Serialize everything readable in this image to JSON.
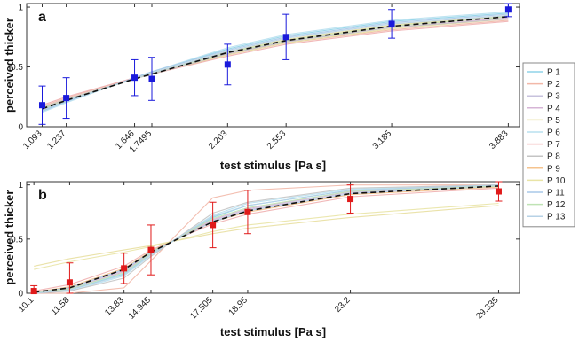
{
  "chart_data": [
    {
      "type": "line",
      "panel_label": "a",
      "xlabel": "test stimulus [Pa s]",
      "ylabel": "perceived thicker",
      "xlim": [
        1.0,
        3.95
      ],
      "ylim": [
        0,
        1.03
      ],
      "xtick_values": [
        1.093,
        1.237,
        1.646,
        1.7495,
        2.203,
        2.553,
        3.185,
        3.883
      ],
      "xtick_labels": [
        "1.093",
        "1.237",
        "1.646",
        "1.7495",
        "2.203",
        "2.553",
        "3.185",
        "3.883"
      ],
      "ytick_values": [
        0,
        0.5,
        1
      ],
      "ytick_labels": [
        "0",
        "0.5",
        "1"
      ],
      "grid": false,
      "points": {
        "x": [
          1.093,
          1.237,
          1.646,
          1.7495,
          2.203,
          2.553,
          3.185,
          3.883
        ],
        "y": [
          0.18,
          0.24,
          0.41,
          0.4,
          0.52,
          0.75,
          0.86,
          0.98
        ],
        "err": [
          0.16,
          0.17,
          0.15,
          0.18,
          0.17,
          0.19,
          0.12,
          0.06
        ],
        "color": "#1a1adb"
      },
      "mean_fit": {
        "x": [
          1.093,
          1.237,
          1.646,
          1.7495,
          2.203,
          2.553,
          3.185,
          3.883
        ],
        "y": [
          0.15,
          0.22,
          0.4,
          0.44,
          0.62,
          0.72,
          0.84,
          0.92
        ],
        "color": "#111111"
      },
      "participant_fits": [
        {
          "name": "P 1",
          "color": "#8fd3e8",
          "y": [
            0.13,
            0.21,
            0.41,
            0.46,
            0.65,
            0.76,
            0.88,
            0.95
          ]
        },
        {
          "name": "P 2",
          "color": "#f2b8a8",
          "y": [
            0.17,
            0.24,
            0.41,
            0.44,
            0.6,
            0.7,
            0.81,
            0.89
          ]
        },
        {
          "name": "P 3",
          "color": "#c7c2dd",
          "y": [
            0.14,
            0.22,
            0.4,
            0.45,
            0.63,
            0.73,
            0.85,
            0.93
          ]
        },
        {
          "name": "P 4",
          "color": "#d6b4d6",
          "y": [
            0.15,
            0.23,
            0.4,
            0.44,
            0.61,
            0.71,
            0.83,
            0.91
          ]
        },
        {
          "name": "P 5",
          "color": "#e8dfa0",
          "y": [
            0.16,
            0.23,
            0.4,
            0.44,
            0.6,
            0.7,
            0.82,
            0.9
          ]
        },
        {
          "name": "P 6",
          "color": "#b8e0ef",
          "y": [
            0.12,
            0.2,
            0.41,
            0.46,
            0.66,
            0.77,
            0.89,
            0.96
          ]
        },
        {
          "name": "P 7",
          "color": "#f0b0b0",
          "y": [
            0.18,
            0.25,
            0.41,
            0.44,
            0.59,
            0.69,
            0.8,
            0.88
          ]
        },
        {
          "name": "P 8",
          "color": "#c4c4c4",
          "y": [
            0.16,
            0.23,
            0.4,
            0.44,
            0.61,
            0.71,
            0.83,
            0.9
          ]
        },
        {
          "name": "P 9",
          "color": "#f5c38e",
          "y": [
            0.15,
            0.22,
            0.4,
            0.45,
            0.62,
            0.72,
            0.84,
            0.92
          ]
        },
        {
          "name": "P 10",
          "color": "#e9e4a6",
          "y": [
            0.14,
            0.22,
            0.4,
            0.45,
            0.63,
            0.73,
            0.85,
            0.93
          ]
        },
        {
          "name": "P 11",
          "color": "#a9c8e8",
          "y": [
            0.13,
            0.21,
            0.41,
            0.46,
            0.64,
            0.75,
            0.87,
            0.94
          ]
        },
        {
          "name": "P 12",
          "color": "#bfe3b4",
          "y": [
            0.15,
            0.22,
            0.4,
            0.45,
            0.62,
            0.72,
            0.84,
            0.92
          ]
        },
        {
          "name": "P 13",
          "color": "#b7d2e6",
          "y": [
            0.14,
            0.22,
            0.4,
            0.45,
            0.63,
            0.74,
            0.86,
            0.93
          ]
        }
      ]
    },
    {
      "type": "line",
      "panel_label": "b",
      "xlabel": "test stimulus [Pa s]",
      "ylabel": "perceived thicker",
      "xlim": [
        9.8,
        30.2
      ],
      "ylim": [
        0,
        1.03
      ],
      "xtick_values": [
        10.1,
        11.58,
        13.83,
        14.945,
        17.505,
        18.95,
        23.2,
        29.335
      ],
      "xtick_labels": [
        "10.1",
        "11.58",
        "13.83",
        "14.945",
        "17.505",
        "18.95",
        "23.2",
        "29.335"
      ],
      "ytick_values": [
        0,
        0.5,
        1
      ],
      "ytick_labels": [
        "0",
        "0.5",
        "1"
      ],
      "grid": false,
      "points": {
        "x": [
          10.1,
          11.58,
          13.83,
          14.945,
          17.505,
          18.95,
          23.2,
          29.335
        ],
        "y": [
          0.02,
          0.1,
          0.23,
          0.4,
          0.63,
          0.75,
          0.87,
          0.94
        ],
        "err": [
          0.05,
          0.18,
          0.14,
          0.23,
          0.21,
          0.2,
          0.13,
          0.09
        ],
        "color": "#e01a1a"
      },
      "mean_fit": {
        "x": [
          10.1,
          11.58,
          13.83,
          14.945,
          17.505,
          18.95,
          23.2,
          29.335
        ],
        "y": [
          0.01,
          0.05,
          0.22,
          0.38,
          0.66,
          0.76,
          0.92,
          0.99
        ],
        "color": "#111111"
      },
      "participant_fits": [
        {
          "name": "P 1",
          "color": "#8fd3e8",
          "y": [
            0.0,
            0.03,
            0.18,
            0.36,
            0.7,
            0.81,
            0.95,
            1.0
          ]
        },
        {
          "name": "P 2",
          "color": "#f2b8a8",
          "y": [
            0.0,
            0.0,
            0.05,
            0.3,
            0.88,
            0.95,
            1.0,
            1.0
          ]
        },
        {
          "name": "P 3",
          "color": "#c7c2dd",
          "y": [
            0.01,
            0.05,
            0.21,
            0.38,
            0.67,
            0.77,
            0.93,
            0.99
          ]
        },
        {
          "name": "P 4",
          "color": "#d6b4d6",
          "y": [
            0.01,
            0.04,
            0.2,
            0.37,
            0.68,
            0.78,
            0.94,
            0.99
          ]
        },
        {
          "name": "P 5",
          "color": "#e8dfa0",
          "y": [
            0.25,
            0.32,
            0.4,
            0.44,
            0.55,
            0.6,
            0.7,
            0.81
          ]
        },
        {
          "name": "P 6",
          "color": "#b8e0ef",
          "y": [
            0.0,
            0.02,
            0.16,
            0.35,
            0.72,
            0.83,
            0.96,
            1.0
          ]
        },
        {
          "name": "P 7",
          "color": "#f0b0b0",
          "y": [
            0.02,
            0.08,
            0.25,
            0.4,
            0.64,
            0.73,
            0.89,
            0.97
          ]
        },
        {
          "name": "P 8",
          "color": "#c4c4c4",
          "y": [
            0.0,
            0.02,
            0.14,
            0.34,
            0.74,
            0.84,
            0.97,
            1.0
          ]
        },
        {
          "name": "P 9",
          "color": "#f5c38e",
          "y": [
            0.01,
            0.06,
            0.23,
            0.39,
            0.66,
            0.75,
            0.91,
            0.98
          ]
        },
        {
          "name": "P 10",
          "color": "#e9e4a6",
          "y": [
            0.22,
            0.29,
            0.38,
            0.43,
            0.57,
            0.63,
            0.73,
            0.83
          ]
        },
        {
          "name": "P 11",
          "color": "#a9c8e8",
          "y": [
            0.01,
            0.05,
            0.22,
            0.38,
            0.66,
            0.76,
            0.92,
            0.99
          ]
        },
        {
          "name": "P 12",
          "color": "#bfe3b4",
          "y": [
            0.01,
            0.04,
            0.19,
            0.37,
            0.69,
            0.79,
            0.94,
            0.99
          ]
        },
        {
          "name": "P 13",
          "color": "#b7d2e6",
          "y": [
            0.0,
            0.03,
            0.17,
            0.36,
            0.71,
            0.81,
            0.95,
            1.0
          ]
        }
      ]
    }
  ],
  "legend": {
    "placement": "right",
    "entries": [
      "P 1",
      "P 2",
      "P 3",
      "P 4",
      "P 5",
      "P 6",
      "P 7",
      "P 8",
      "P 9",
      "P 10",
      "P 11",
      "P 12",
      "P 13"
    ]
  }
}
